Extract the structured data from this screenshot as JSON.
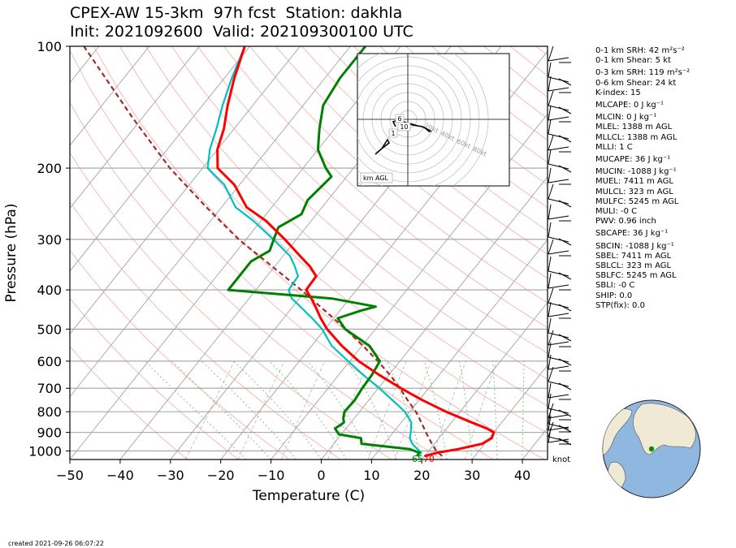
{
  "header": {
    "title_line1": "CPEX-AW 15-3km  97h fcst  Station: dakhla",
    "title_line2": "Init: 2021092600  Valid: 202109300100 UTC"
  },
  "stats": [
    "0-1 km SRH: 42 m²s⁻²",
    "0-1 km Shear: 5 kt",
    "0-3 km SRH: 119 m²s⁻²",
    "0-6 km Shear: 24 kt",
    "K-index: 15",
    "MLCAPE: 0 J kg⁻¹",
    "MLCIN: 0 J kg⁻¹",
    "MLEL: 1388 m AGL",
    "MLLCL: 1388 m AGL",
    "MLLI: 1 C",
    "MUCAPE: 36 J kg⁻¹",
    "MUCIN: -1088 J kg⁻¹",
    "MUEL: 7411 m AGL",
    "MULCL: 323 m AGL",
    "MULFC: 5245 m AGL",
    "MULI: -0 C",
    "PWV: 0.96 inch",
    "SBCAPE: 36 J kg⁻¹",
    "SBCIN: -1088 J kg⁻¹",
    "SBEL: 7411 m AGL",
    "SBLCL: 323 m AGL",
    "SBLFC: 5245 m AGL",
    "SBLI: -0 C",
    "SHIP: 0.0",
    "STP(fix): 0.0"
  ],
  "footer": {
    "created": "created 2021-09-26 06:07:22"
  },
  "hodograph": {
    "legend": "km AGL",
    "ring_labels": [
      "20kt",
      "40kt",
      "60kt",
      "80kt"
    ],
    "height_labels": [
      "6",
      "1",
      "10"
    ]
  },
  "barbs": {
    "unit_label": "knot"
  },
  "surface_labels": {
    "dewpoint": "65",
    "temperature": "70"
  },
  "colors": {
    "temperature": "#ff0000",
    "dewpoint": "#008000",
    "wetbulb": "#00bfbf",
    "parcel": "#a52a2a",
    "dry_adiabat": "#f08080",
    "moist_adiabat": "#8ac48a",
    "mixing_ratio": "#999999",
    "isotherm": "#aaaaaa",
    "ocean": "#8fb7e0",
    "land": "#efe9d6"
  },
  "chart_data": {
    "type": "line",
    "title": "CPEX-AW 15-3km  97h fcst  Station: dakhla",
    "subtitle": "Init: 2021092600  Valid: 202109300100 UTC",
    "xlabel": "Temperature (C)",
    "ylabel": "Pressure (hPa)",
    "x_ticks": [
      -50,
      -40,
      -30,
      -20,
      -10,
      0,
      10,
      20,
      30,
      40
    ],
    "y_ticks": [
      100,
      200,
      300,
      400,
      500,
      600,
      700,
      800,
      900,
      1000
    ],
    "y_scale": "log",
    "xlim": [
      -50,
      45
    ],
    "ylim": [
      1050,
      100
    ],
    "series": [
      {
        "kind": "temperature",
        "pressure": [
          1030,
          1010,
          990,
          960,
          930,
          900,
          880,
          850,
          800,
          750,
          700,
          650,
          600,
          550,
          500,
          470,
          440,
          420,
          400,
          370,
          350,
          330,
          300,
          270,
          250,
          220,
          200,
          180,
          160,
          140,
          120,
          100
        ],
        "values": [
          20,
          22,
          25.5,
          29.5,
          30.5,
          30,
          28,
          24,
          17.2,
          10.8,
          4.5,
          -1.8,
          -8.2,
          -14,
          -19.6,
          -22.6,
          -25.5,
          -27.6,
          -30,
          -30.2,
          -33,
          -36.6,
          -42.3,
          -49,
          -55,
          -61,
          -67,
          -70,
          -72,
          -75,
          -78,
          -81
        ]
      },
      {
        "kind": "wetbulb",
        "pressure": [
          1030,
          1010,
          990,
          960,
          930,
          900,
          850,
          800,
          750,
          700,
          650,
          600,
          550,
          500,
          470,
          440,
          420,
          400,
          370,
          350,
          330,
          300,
          270,
          250,
          220,
          200,
          180,
          160,
          140,
          120,
          100
        ],
        "values": [
          18.5,
          18.8,
          17.5,
          15.6,
          14.2,
          13.5,
          12,
          9,
          4.8,
          0.2,
          -5,
          -10.3,
          -16,
          -20.6,
          -24.3,
          -28.5,
          -31.5,
          -33.5,
          -33.8,
          -36,
          -38.6,
          -44.6,
          -51.5,
          -57.2,
          -63,
          -69,
          -71.5,
          -73.5,
          -76,
          -78.5,
          -81
        ]
      },
      {
        "kind": "dewpoint",
        "pressure": [
          1030,
          1010,
          990,
          960,
          930,
          910,
          880,
          860,
          850,
          830,
          800,
          750,
          700,
          650,
          600,
          550,
          500,
          470,
          450,
          440,
          420,
          400,
          380,
          380,
          360,
          340,
          320,
          300,
          280,
          260,
          240,
          210,
          200,
          180,
          160,
          140,
          120,
          100
        ],
        "values": [
          18.5,
          18.4,
          16,
          5.5,
          4.5,
          -0.5,
          -2.2,
          -1.6,
          -1.4,
          -2.2,
          -3,
          -2.8,
          -3.2,
          -3.4,
          -4,
          -8.5,
          -16,
          -19.2,
          -15.8,
          -13.5,
          -23.5,
          -45.5,
          -45.5,
          -45.5,
          -45.5,
          -45.5,
          -43.5,
          -44.5,
          -45.5,
          -43,
          -44,
          -43,
          -45.5,
          -50,
          -53,
          -56,
          -57,
          -57
        ]
      },
      {
        "kind": "parcel",
        "pressure": [
          1030,
          1000,
          950,
          900,
          850,
          800,
          750,
          700,
          650,
          600,
          550,
          500,
          450,
          400,
          350,
          300,
          250,
          200,
          150,
          100
        ],
        "values": [
          23.5,
          21.5,
          19,
          16.5,
          14,
          11.2,
          7.8,
          4.3,
          0.3,
          -4.4,
          -9.8,
          -15.9,
          -23,
          -31,
          -40.5,
          -51.5,
          -63,
          -76.5,
          -92,
          -113
        ]
      }
    ]
  }
}
